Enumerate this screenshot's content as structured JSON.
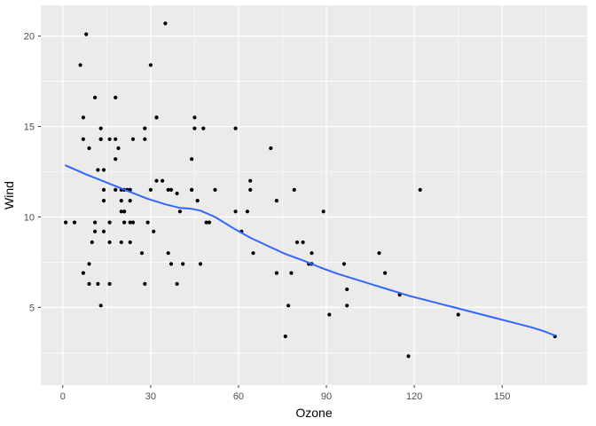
{
  "figure": {
    "xlabel": "Ozone",
    "ylabel": "Wind"
  },
  "chart_data": {
    "type": "scatter",
    "title": "",
    "xlabel": "Ozone",
    "ylabel": "Wind",
    "x_ticks": [
      0,
      30,
      60,
      90,
      120,
      150
    ],
    "y_ticks": [
      5,
      10,
      15,
      20
    ],
    "x_minor_ticks": [
      15,
      45,
      75,
      105,
      135,
      165
    ],
    "y_minor_ticks": [
      2.5,
      7.5,
      12.5,
      17.5
    ],
    "xlim": [
      -7.5,
      179
    ],
    "ylim": [
      0.7,
      21.7
    ],
    "grid": true,
    "legend": "none",
    "panel_bg": "#EBEBEB",
    "grid_color": "#FFFFFF",
    "point_color": "#000000",
    "smooth_color": "#3366FF",
    "tick_mark_color": "#333333",
    "points": [
      [
        41,
        7.4
      ],
      [
        36,
        8
      ],
      [
        12,
        12.6
      ],
      [
        18,
        11.5
      ],
      [
        28,
        14.9
      ],
      [
        23,
        8.6
      ],
      [
        19,
        13.8
      ],
      [
        8,
        20.1
      ],
      [
        7,
        6.9
      ],
      [
        16,
        9.7
      ],
      [
        11,
        9.2
      ],
      [
        14,
        10.9
      ],
      [
        18,
        13.2
      ],
      [
        14,
        11.5
      ],
      [
        34,
        12
      ],
      [
        6,
        18.4
      ],
      [
        30,
        11.5
      ],
      [
        11,
        9.7
      ],
      [
        1,
        9.7
      ],
      [
        11,
        16.6
      ],
      [
        4,
        9.7
      ],
      [
        32,
        12
      ],
      [
        23,
        11.5
      ],
      [
        45,
        14.9
      ],
      [
        115,
        5.7
      ],
      [
        37,
        7.4
      ],
      [
        29,
        9.7
      ],
      [
        71,
        13.8
      ],
      [
        39,
        11.3
      ],
      [
        23,
        10.9
      ],
      [
        21,
        9.7
      ],
      [
        37,
        11.5
      ],
      [
        20,
        10.3
      ],
      [
        12,
        6.3
      ],
      [
        13,
        5.1
      ],
      [
        135,
        4.6
      ],
      [
        49,
        9.7
      ],
      [
        32,
        15.5
      ],
      [
        64,
        12
      ],
      [
        40,
        10.3
      ],
      [
        77,
        5.1
      ],
      [
        97,
        6
      ],
      [
        97,
        5.1
      ],
      [
        85,
        8
      ],
      [
        10,
        8.6
      ],
      [
        27,
        8
      ],
      [
        7,
        14.3
      ],
      [
        48,
        14.9
      ],
      [
        35,
        20.7
      ],
      [
        61,
        9.2
      ],
      [
        79,
        11.5
      ],
      [
        63,
        10.3
      ],
      [
        16,
        6.3
      ],
      [
        80,
        8.6
      ],
      [
        108,
        8
      ],
      [
        20,
        11.5
      ],
      [
        52,
        11.5
      ],
      [
        82,
        8.6
      ],
      [
        50,
        9.7
      ],
      [
        64,
        11.5
      ],
      [
        59,
        10.3
      ],
      [
        39,
        6.3
      ],
      [
        9,
        13.8
      ],
      [
        16,
        8.6
      ],
      [
        122,
        11.5
      ],
      [
        89,
        10.3
      ],
      [
        110,
        6.9
      ],
      [
        44,
        13.2
      ],
      [
        28,
        14.3
      ],
      [
        65,
        8
      ],
      [
        22,
        11.5
      ],
      [
        59,
        14.9
      ],
      [
        31,
        9.2
      ],
      [
        44,
        11.5
      ],
      [
        21,
        10.3
      ],
      [
        9,
        6.3
      ],
      [
        45,
        15.5
      ],
      [
        168,
        3.4
      ],
      [
        73,
        10.9
      ],
      [
        76,
        3.4
      ],
      [
        118,
        2.3
      ],
      [
        84,
        7.4
      ],
      [
        85,
        7.4
      ],
      [
        96,
        7.4
      ],
      [
        78,
        6.9
      ],
      [
        73,
        6.9
      ],
      [
        91,
        4.6
      ],
      [
        47,
        7.4
      ],
      [
        32,
        15.5
      ],
      [
        20,
        10.9
      ],
      [
        23,
        11.5
      ],
      [
        21,
        11.5
      ],
      [
        24,
        9.7
      ],
      [
        44,
        11.5
      ],
      [
        21,
        10.3
      ],
      [
        28,
        6.3
      ],
      [
        9,
        7.4
      ],
      [
        13,
        14.3
      ],
      [
        46,
        10.9
      ],
      [
        18,
        14.3
      ],
      [
        13,
        14.9
      ],
      [
        24,
        14.3
      ],
      [
        16,
        14.3
      ],
      [
        13,
        14.3
      ],
      [
        23,
        9.7
      ],
      [
        36,
        11.5
      ],
      [
        7,
        15.5
      ],
      [
        14,
        12.6
      ],
      [
        30,
        18.4
      ],
      [
        14,
        9.2
      ],
      [
        18,
        16.6
      ],
      [
        20,
        8.6
      ]
    ],
    "smooth": [
      [
        1,
        12.85
      ],
      [
        8,
        12.35
      ],
      [
        15,
        11.9
      ],
      [
        22,
        11.45
      ],
      [
        29,
        11.0
      ],
      [
        35,
        10.7
      ],
      [
        40,
        10.5
      ],
      [
        44,
        10.45
      ],
      [
        47,
        10.35
      ],
      [
        52,
        10.0
      ],
      [
        58,
        9.4
      ],
      [
        64,
        8.85
      ],
      [
        70,
        8.4
      ],
      [
        76,
        7.95
      ],
      [
        82,
        7.6
      ],
      [
        88,
        7.2
      ],
      [
        94,
        6.85
      ],
      [
        100,
        6.55
      ],
      [
        106,
        6.25
      ],
      [
        112,
        5.95
      ],
      [
        118,
        5.65
      ],
      [
        124,
        5.4
      ],
      [
        130,
        5.15
      ],
      [
        136,
        4.9
      ],
      [
        142,
        4.65
      ],
      [
        148,
        4.4
      ],
      [
        154,
        4.15
      ],
      [
        160,
        3.9
      ],
      [
        164,
        3.7
      ],
      [
        168,
        3.45
      ]
    ]
  }
}
